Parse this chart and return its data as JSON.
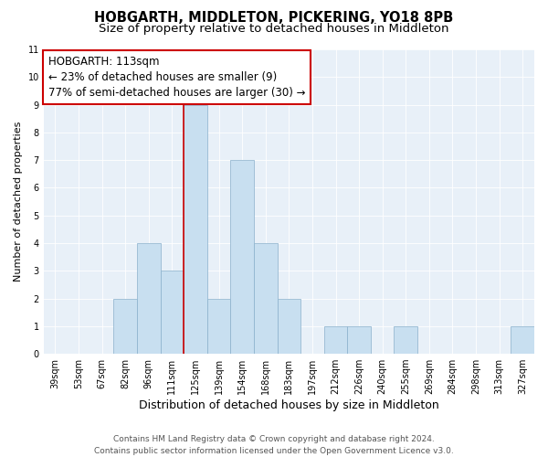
{
  "title": "HOBGARTH, MIDDLETON, PICKERING, YO18 8PB",
  "subtitle": "Size of property relative to detached houses in Middleton",
  "xlabel": "Distribution of detached houses by size in Middleton",
  "ylabel": "Number of detached properties",
  "bin_labels": [
    "39sqm",
    "53sqm",
    "67sqm",
    "82sqm",
    "96sqm",
    "111sqm",
    "125sqm",
    "139sqm",
    "154sqm",
    "168sqm",
    "183sqm",
    "197sqm",
    "212sqm",
    "226sqm",
    "240sqm",
    "255sqm",
    "269sqm",
    "284sqm",
    "298sqm",
    "313sqm",
    "327sqm"
  ],
  "bar_values": [
    0,
    0,
    0,
    2,
    4,
    3,
    9,
    2,
    7,
    4,
    2,
    0,
    1,
    1,
    0,
    1,
    0,
    0,
    0,
    0,
    1
  ],
  "bar_color": "#c8dff0",
  "bar_edge_color": "#8ab0cc",
  "highlight_index": 5,
  "highlight_line_color": "#cc0000",
  "annotation_title": "HOBGARTH: 113sqm",
  "annotation_line1": "← 23% of detached houses are smaller (9)",
  "annotation_line2": "77% of semi-detached houses are larger (30) →",
  "annotation_box_facecolor": "#ffffff",
  "annotation_box_edgecolor": "#cc0000",
  "plot_bg_color": "#e8f0f8",
  "ylim": [
    0,
    11
  ],
  "yticks": [
    0,
    1,
    2,
    3,
    4,
    5,
    6,
    7,
    8,
    9,
    10,
    11
  ],
  "footer_line1": "Contains HM Land Registry data © Crown copyright and database right 2024.",
  "footer_line2": "Contains public sector information licensed under the Open Government Licence v3.0.",
  "title_fontsize": 10.5,
  "subtitle_fontsize": 9.5,
  "xlabel_fontsize": 9,
  "ylabel_fontsize": 8,
  "tick_fontsize": 7,
  "annotation_title_fontsize": 9,
  "annotation_body_fontsize": 8.5,
  "footer_fontsize": 6.5
}
